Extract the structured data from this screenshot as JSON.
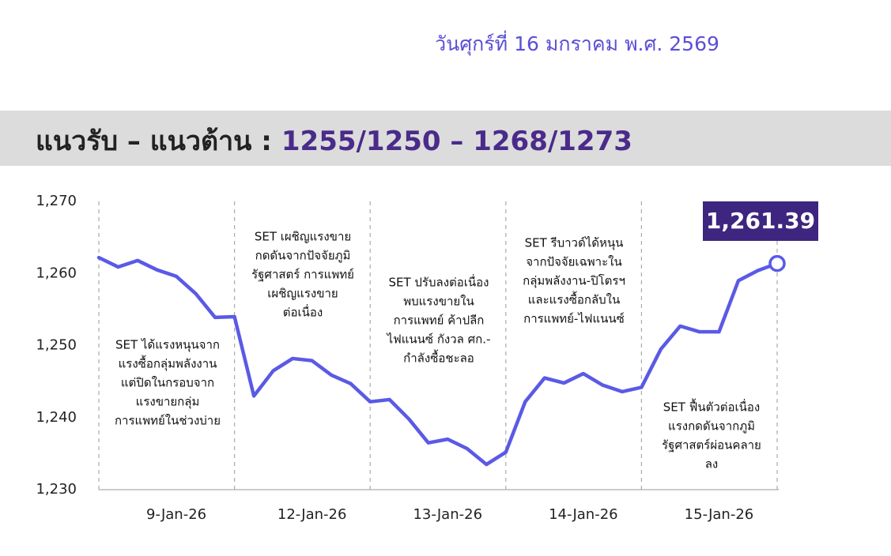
{
  "date": "วันศุกร์ที่ 16 มกราคม พ.ศ. 2569",
  "header": {
    "label": "แนวรับ – แนวต้าน :",
    "levels": "1255/1250 – 1268/1273"
  },
  "chart_data": {
    "type": "line",
    "categories": [
      null,
      null,
      null,
      null,
      "9-Jan-26",
      null,
      null,
      null,
      null,
      null,
      null,
      "12-Jan-26",
      null,
      null,
      null,
      null,
      null,
      null,
      "13-Jan-26",
      null,
      null,
      null,
      null,
      null,
      null,
      "14-Jan-26",
      null,
      null,
      null,
      null,
      null,
      null,
      "15-Jan-26",
      null,
      null,
      null
    ],
    "values": [
      1262.2,
      1260.9,
      1261.8,
      1260.5,
      1259.6,
      1257.2,
      1253.9,
      1254.0,
      1243.0,
      1246.5,
      1248.2,
      1247.9,
      1245.9,
      1244.7,
      1242.2,
      1242.5,
      1239.8,
      1236.5,
      1237.0,
      1235.7,
      1233.5,
      1235.2,
      1242.2,
      1245.5,
      1244.8,
      1246.1,
      1244.5,
      1243.6,
      1244.2,
      1249.5,
      1252.7,
      1251.9,
      1251.9,
      1259.0,
      1260.4,
      1261.39
    ],
    "value_labels": [
      null,
      null,
      null,
      null,
      null,
      null,
      null,
      null,
      null,
      null,
      null,
      null,
      null,
      null,
      null,
      null,
      null,
      null,
      null,
      null,
      null,
      null,
      null,
      null,
      null,
      null,
      null,
      null,
      null,
      null,
      null,
      null,
      null,
      null,
      null,
      "1,261.39"
    ],
    "color": "#5a5ae6",
    "ylim": [
      1230,
      1270
    ],
    "yticks": [
      {
        "value": 1230,
        "label": "1,230"
      },
      {
        "value": 1240,
        "label": "1,240"
      },
      {
        "value": 1250,
        "label": "1,250"
      },
      {
        "value": 1260,
        "label": "1,260"
      },
      {
        "value": 1270,
        "label": "1,270"
      }
    ],
    "annotations": [
      [
        "SET ได้แรงหนุนจาก",
        "แรงซื้อกลุ่มพลังงาน",
        "แต่ปิดในกรอบจาก",
        "แรงขายกลุ่ม",
        "การแพทย์ในช่วงบ่าย"
      ],
      [
        "SET เผชิญแรงขาย",
        "กดดันจากปัจจัยภูมิ",
        "รัฐศาสตร์ การแพทย์",
        "เผชิญแรงขาย",
        "ต่อเนื่อง"
      ],
      [
        "SET ปรับลงต่อเนื่อง",
        "พบแรงขายใน",
        "การแพทย์ ค้าปลีก",
        "ไฟแนนซ์ กังวล ศก.-",
        "กำลังซื้อชะลอ"
      ],
      [
        "SET รีบาวด์ได้หนุน",
        "จากปัจจัยเฉพาะใน",
        "กลุ่มพลังงาน-ปิโตรฯ",
        "และแรงซื้อกลับใน",
        "การแพทย์-ไฟแนนซ์"
      ],
      [
        "SET ฟื้นตัวต่อเนื่อง",
        "แรงกดดันจากภูมิ",
        "รัฐศาสตร์ผ่อนคลาย",
        "ลง"
      ]
    ]
  }
}
